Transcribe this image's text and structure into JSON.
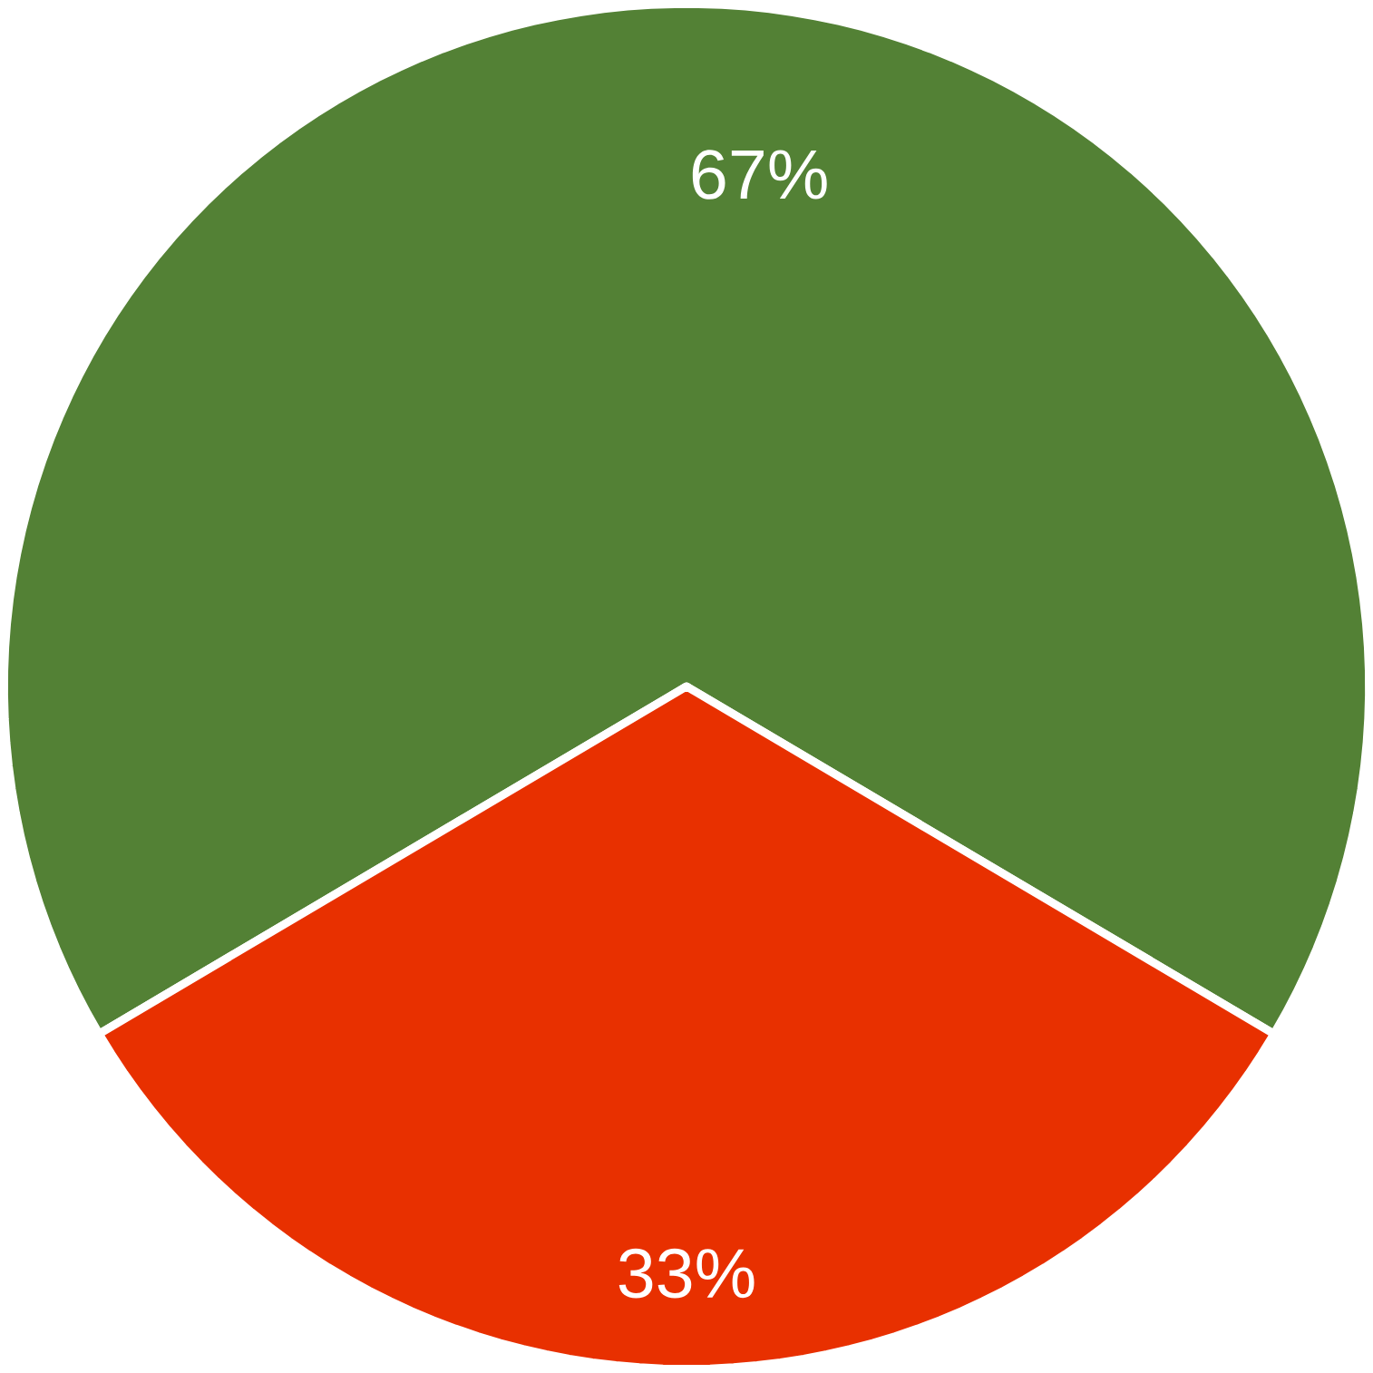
{
  "chart_data": {
    "type": "pie",
    "categories": [
      null,
      null
    ],
    "values": [
      67,
      33
    ],
    "colors": [
      "#538135",
      "#e83000"
    ],
    "value_labels": [
      "67%",
      "33%"
    ]
  }
}
